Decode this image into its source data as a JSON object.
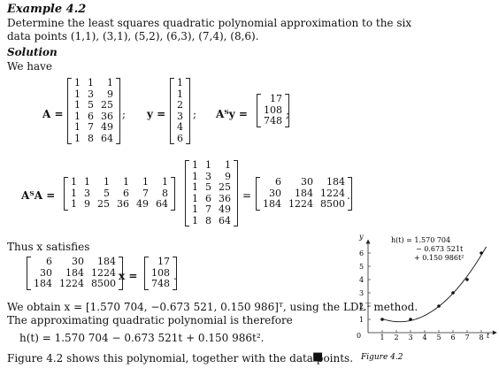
{
  "heading": "Example 4.2",
  "intro_line1": "Determine the least squares quadratic polynomial approximation to the six",
  "intro_line2": "data points (1,1), (3,1), (5,2), (6,3), (7,4), (8,6).",
  "solution_label": "Solution",
  "we_have": "We have",
  "A_label": "A =",
  "y_label": "y =",
  "ATy_label": "Aᵀy =",
  "ATA_label": "AᵀA =",
  "semicolon": ";",
  "period": ".",
  "matrix_A": [
    [
      "1",
      "1",
      "1"
    ],
    [
      "1",
      "3",
      "9"
    ],
    [
      "1",
      "5",
      "25"
    ],
    [
      "1",
      "6",
      "36"
    ],
    [
      "1",
      "7",
      "49"
    ],
    [
      "1",
      "8",
      "64"
    ]
  ],
  "vector_y": [
    "1",
    "1",
    "2",
    "3",
    "4",
    "6"
  ],
  "vector_ATy": [
    "17",
    "108",
    "748"
  ],
  "matrix_AT": [
    [
      "1",
      "1",
      "1",
      "1",
      "1",
      "1"
    ],
    [
      "1",
      "3",
      "5",
      "6",
      "7",
      "8"
    ],
    [
      "1",
      "9",
      "25",
      "36",
      "49",
      "64"
    ]
  ],
  "matrix_ATA": [
    [
      "6",
      "30",
      "184"
    ],
    [
      "30",
      "184",
      "1224"
    ],
    [
      "184",
      "1224",
      "8500"
    ]
  ],
  "thus_text": "Thus x satisfies",
  "x_label": "x =",
  "rhs_vector": [
    "17",
    "108",
    "748"
  ],
  "obtain_text": "We obtain x = [1.570 704, −0.673 521, 0.150 986]ᵀ, using the LDLᵀ method.",
  "approx_text": "The approximating quadratic polynomial is therefore",
  "equation": "h(t) = 1.570 704 − 0.673 521t + 0.150 986t².",
  "figure_text": "Figure 4.2 shows this polynomial, together with the data points.",
  "end_mark": "■",
  "plot": {
    "y_axis_label": "y",
    "t_axis_label": "t",
    "origin_label": "0",
    "y_ticks": [
      "1",
      "2",
      "3",
      "4",
      "5",
      "6"
    ],
    "t_ticks": [
      "1",
      "2",
      "3",
      "4",
      "5",
      "6",
      "7",
      "8"
    ],
    "legend_line1": "h(t) = 1.570 704",
    "legend_line2": "− 0.673 521t",
    "legend_line3": "+ 0.150 986t²",
    "caption": "Figure 4.2",
    "data_points": [
      [
        1,
        1
      ],
      [
        3,
        1
      ],
      [
        5,
        2
      ],
      [
        6,
        3
      ],
      [
        7,
        4
      ],
      [
        8,
        6
      ]
    ],
    "coeffs": [
      1.570704,
      -0.673521,
      0.150986
    ]
  }
}
